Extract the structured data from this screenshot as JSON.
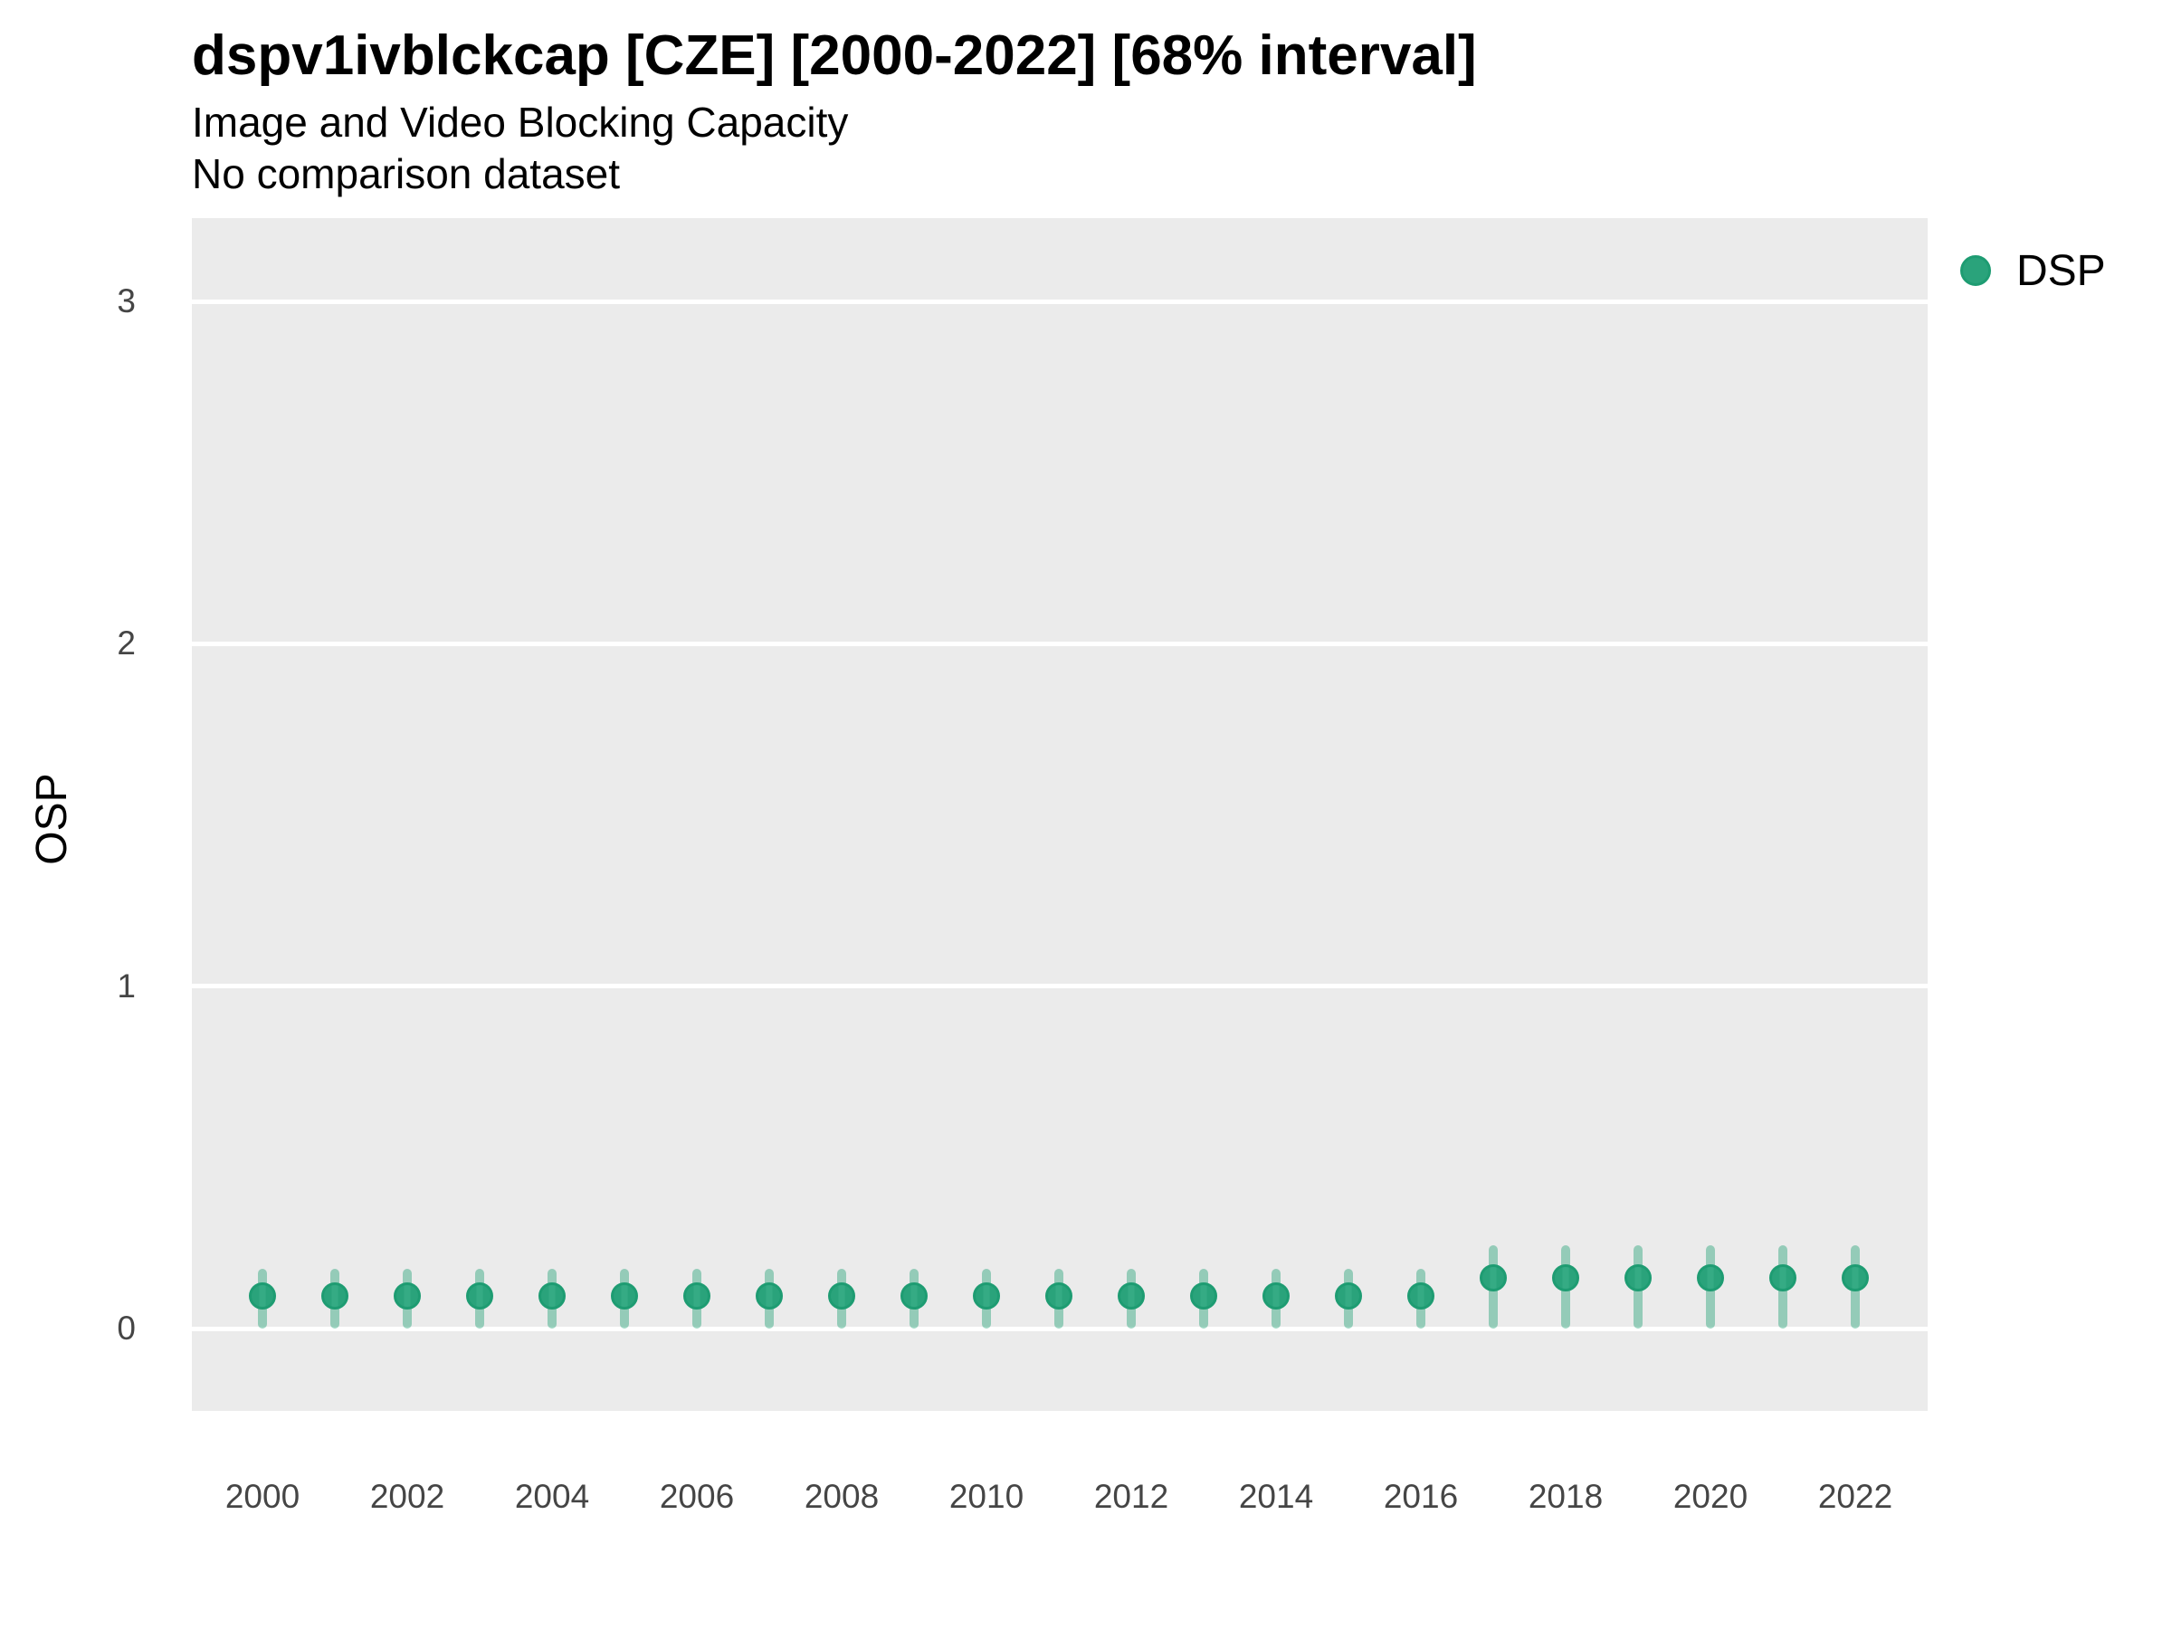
{
  "header": {
    "title": "dspv1ivblckcap [CZE] [2000-2022] [68% interval]",
    "subtitle": "Image and Video Blocking Capacity",
    "note": "No comparison dataset"
  },
  "colors": {
    "panel_background": "#EBEBEB",
    "gridline": "#FFFFFF",
    "point_fill": "#2AA37B",
    "point_stripe": "#35AB84",
    "point_border": "#1E9C72",
    "interval_fill": "rgba(42,163,123,0.45)",
    "tick_label": "#454545",
    "text": "#000000"
  },
  "chart_data": {
    "type": "pointrange",
    "title": "dspv1ivblckcap [CZE] [2000-2022] [68% interval]",
    "subtitle": "Image and Video Blocking Capacity",
    "note": "No comparison dataset",
    "xlabel": "",
    "ylabel": "OSP",
    "interval_level": "68%",
    "grid": "horizontal-major-only",
    "legend_position": "right",
    "xlim": [
      1999,
      2023
    ],
    "ylim": [
      -0.24,
      3.24
    ],
    "y_ticks": [
      0,
      1,
      2,
      3
    ],
    "x_ticks": [
      2000,
      2002,
      2004,
      2006,
      2008,
      2010,
      2012,
      2014,
      2016,
      2018,
      2020,
      2022
    ],
    "series": [
      {
        "name": "DSP",
        "color": "#2AA37B",
        "points": [
          {
            "year": 2000,
            "value": 0.095,
            "lo": 0.0,
            "hi": 0.175
          },
          {
            "year": 2001,
            "value": 0.095,
            "lo": 0.0,
            "hi": 0.175
          },
          {
            "year": 2002,
            "value": 0.095,
            "lo": 0.0,
            "hi": 0.175
          },
          {
            "year": 2003,
            "value": 0.095,
            "lo": 0.0,
            "hi": 0.175
          },
          {
            "year": 2004,
            "value": 0.095,
            "lo": 0.0,
            "hi": 0.175
          },
          {
            "year": 2005,
            "value": 0.095,
            "lo": 0.0,
            "hi": 0.175
          },
          {
            "year": 2006,
            "value": 0.095,
            "lo": 0.0,
            "hi": 0.175
          },
          {
            "year": 2007,
            "value": 0.095,
            "lo": 0.0,
            "hi": 0.175
          },
          {
            "year": 2008,
            "value": 0.095,
            "lo": 0.0,
            "hi": 0.175
          },
          {
            "year": 2009,
            "value": 0.095,
            "lo": 0.0,
            "hi": 0.175
          },
          {
            "year": 2010,
            "value": 0.095,
            "lo": 0.0,
            "hi": 0.175
          },
          {
            "year": 2011,
            "value": 0.095,
            "lo": 0.0,
            "hi": 0.175
          },
          {
            "year": 2012,
            "value": 0.095,
            "lo": 0.0,
            "hi": 0.175
          },
          {
            "year": 2013,
            "value": 0.095,
            "lo": 0.0,
            "hi": 0.175
          },
          {
            "year": 2014,
            "value": 0.095,
            "lo": 0.0,
            "hi": 0.175
          },
          {
            "year": 2015,
            "value": 0.095,
            "lo": 0.0,
            "hi": 0.175
          },
          {
            "year": 2016,
            "value": 0.095,
            "lo": 0.0,
            "hi": 0.175
          },
          {
            "year": 2017,
            "value": 0.147,
            "lo": 0.0,
            "hi": 0.242
          },
          {
            "year": 2018,
            "value": 0.147,
            "lo": 0.0,
            "hi": 0.242
          },
          {
            "year": 2019,
            "value": 0.147,
            "lo": 0.0,
            "hi": 0.242
          },
          {
            "year": 2020,
            "value": 0.147,
            "lo": 0.0,
            "hi": 0.242
          },
          {
            "year": 2021,
            "value": 0.147,
            "lo": 0.0,
            "hi": 0.242
          },
          {
            "year": 2022,
            "value": 0.147,
            "lo": 0.0,
            "hi": 0.242
          }
        ]
      }
    ]
  }
}
